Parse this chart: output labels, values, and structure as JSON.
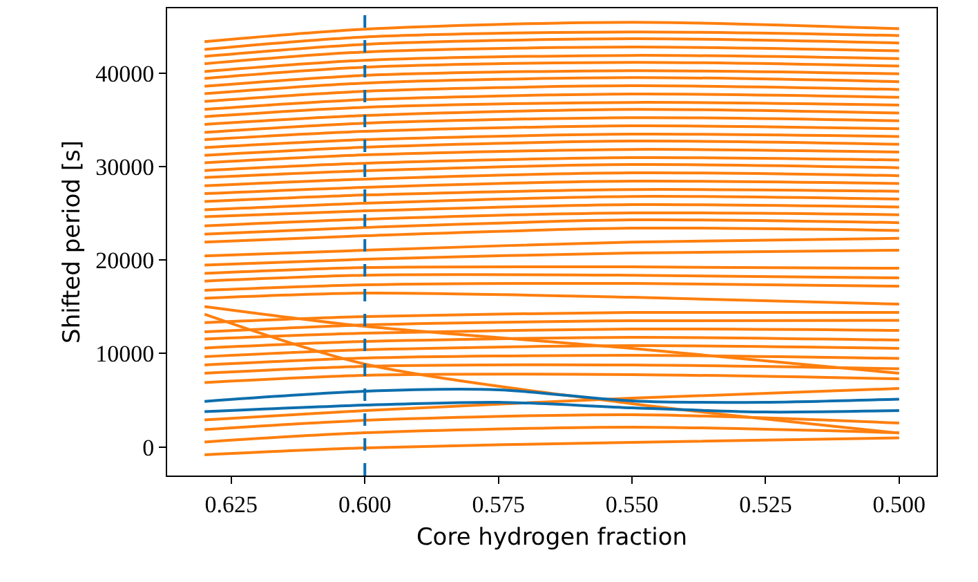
{
  "chart_data": {
    "type": "line",
    "xlabel": "Core hydrogen fraction",
    "ylabel": "Shifted period [s]",
    "x": [
      0.63,
      0.6,
      0.55,
      0.5
    ],
    "xlim": [
      0.637,
      0.493
    ],
    "xticks": [
      {
        "value": 0.625,
        "label": "0.625"
      },
      {
        "value": 0.6,
        "label": "0.600"
      },
      {
        "value": 0.575,
        "label": "0.575"
      },
      {
        "value": 0.55,
        "label": "0.550"
      },
      {
        "value": 0.525,
        "label": "0.525"
      },
      {
        "value": 0.5,
        "label": "0.500"
      }
    ],
    "ylim": [
      -3060,
      46940
    ],
    "yticks": [
      0,
      10000,
      20000,
      30000,
      40000
    ],
    "marker": "none",
    "line_style": "solid",
    "ref_lines": [
      {
        "axis": "x",
        "value": 0.6,
        "color": "#0d6ead",
        "line_style": "dashed"
      }
    ],
    "series": [
      {
        "color": "#ff7f0e",
        "values": [
          43380,
          44710,
          45450,
          44750
        ]
      },
      {
        "color": "#ff7f0e",
        "values": [
          42540,
          43870,
          44410,
          44020
        ]
      },
      {
        "color": "#ff7f0e",
        "values": [
          41800,
          43080,
          43680,
          43230
        ]
      },
      {
        "color": "#ff7f0e",
        "values": [
          41010,
          42270,
          42790,
          42390
        ]
      },
      {
        "color": "#ff7f0e",
        "values": [
          40170,
          41380,
          41900,
          41560
        ]
      },
      {
        "color": "#ff7f0e",
        "values": [
          39430,
          40640,
          41160,
          40760
        ]
      },
      {
        "color": "#ff7f0e",
        "values": [
          38600,
          39760,
          40270,
          39930
        ]
      },
      {
        "color": "#ff7f0e",
        "values": [
          37800,
          38940,
          39530,
          39090
        ]
      },
      {
        "color": "#ff7f0e",
        "values": [
          36980,
          38060,
          38650,
          38250
        ]
      },
      {
        "color": "#ff7f0e",
        "values": [
          36130,
          37170,
          37760,
          37420
        ]
      },
      {
        "color": "#ff7f0e",
        "values": [
          35350,
          36350,
          36870,
          36580
        ]
      },
      {
        "color": "#ff7f0e",
        "values": [
          34510,
          35470,
          36130,
          35730
        ]
      },
      {
        "color": "#ff7f0e",
        "values": [
          33660,
          34650,
          35240,
          34900
        ]
      },
      {
        "color": "#ff7f0e",
        "values": [
          32880,
          33770,
          34360,
          34060
        ]
      },
      {
        "color": "#ff7f0e",
        "values": [
          32040,
          32880,
          33470,
          33220
        ]
      },
      {
        "color": "#ff7f0e",
        "values": [
          31210,
          32070,
          32730,
          32390
        ]
      },
      {
        "color": "#ff7f0e",
        "values": [
          30410,
          31250,
          31840,
          31550
        ]
      },
      {
        "color": "#ff7f0e",
        "values": [
          29580,
          30360,
          30960,
          30700
        ]
      },
      {
        "color": "#ff7f0e",
        "values": [
          28840,
          29550,
          30220,
          29880
        ]
      },
      {
        "color": "#ff7f0e",
        "values": [
          27950,
          28660,
          29330,
          29030
        ]
      },
      {
        "color": "#ff7f0e",
        "values": [
          27110,
          27780,
          28440,
          28190
        ]
      },
      {
        "color": "#ff7f0e",
        "values": [
          26270,
          26960,
          27550,
          27360
        ]
      },
      {
        "color": "#ff7f0e",
        "values": [
          25380,
          26080,
          26810,
          26520
        ]
      },
      {
        "color": "#ff7f0e",
        "values": [
          24640,
          25260,
          25930,
          25680
        ]
      },
      {
        "color": "#ff7f0e",
        "values": [
          23660,
          24370,
          25040,
          24850
        ]
      },
      {
        "color": "#ff7f0e",
        "values": [
          22780,
          23490,
          24300,
          24000
        ]
      },
      {
        "color": "#ff7f0e",
        "values": [
          21930,
          22600,
          23410,
          23160
        ]
      },
      {
        "color": "#ff7f0e",
        "values": [
          20450,
          21050,
          21930,
          22330
        ]
      },
      {
        "color": "#ff7f0e",
        "values": [
          19460,
          20090,
          20750,
          21050
        ]
      },
      {
        "color": "#ff7f0e",
        "values": [
          18580,
          19200,
          19270,
          19120
        ]
      },
      {
        "color": "#ff7f0e",
        "values": [
          17750,
          18380,
          18380,
          18090
        ]
      },
      {
        "color": "#ff7f0e",
        "values": [
          16760,
          17350,
          17500,
          17200
        ]
      },
      {
        "color": "#ff7f0e",
        "values": [
          15030,
          12910,
          10550,
          7880
        ]
      },
      {
        "color": "#ff7f0e",
        "values": [
          15910,
          16460,
          16020,
          15280
        ]
      },
      {
        "color": "#ff7f0e",
        "values": [
          14200,
          8870,
          4630,
          1480
        ]
      },
      {
        "color": "#ff7f0e",
        "values": [
          13310,
          13950,
          14390,
          14390
        ]
      },
      {
        "color": "#ff7f0e",
        "values": [
          12320,
          13060,
          13500,
          13550
        ]
      },
      {
        "color": "#ff7f0e",
        "values": [
          11540,
          12170,
          12620,
          12470
        ]
      },
      {
        "color": "#ff7f0e",
        "values": [
          10590,
          11290,
          11730,
          11430
        ]
      },
      {
        "color": "#ff7f0e",
        "values": [
          9660,
          10400,
          10840,
          10550
        ]
      },
      {
        "color": "#ff7f0e",
        "values": [
          8770,
          9510,
          9810,
          9470
        ]
      },
      {
        "color": "#ff7f0e",
        "values": [
          7880,
          8620,
          8770,
          8370
        ]
      },
      {
        "color": "#ff7f0e",
        "values": [
          6890,
          7660,
          7740,
          7290
        ]
      },
      {
        "color": "#ff7f0e",
        "values": [
          2900,
          3890,
          5220,
          6260
        ]
      },
      {
        "color": "#ff7f0e",
        "values": [
          1860,
          2850,
          3450,
          2560
        ]
      },
      {
        "color": "#ff7f0e",
        "values": [
          530,
          1520,
          2120,
          1520
        ]
      },
      {
        "color": "#ff7f0e",
        "values": [
          -840,
          -100,
          490,
          980
        ]
      },
      {
        "color": "#0d6ead",
        "x": [
          0.63,
          0.6,
          0.575,
          0.55,
          0.525,
          0.5
        ],
        "values": [
          4880,
          5960,
          6110,
          4930,
          4780,
          5120
        ]
      },
      {
        "color": "#0d6ead",
        "x": [
          0.63,
          0.6,
          0.575,
          0.55,
          0.525,
          0.5
        ],
        "values": [
          3790,
          4480,
          4780,
          4190,
          3740,
          3890
        ]
      }
    ]
  }
}
